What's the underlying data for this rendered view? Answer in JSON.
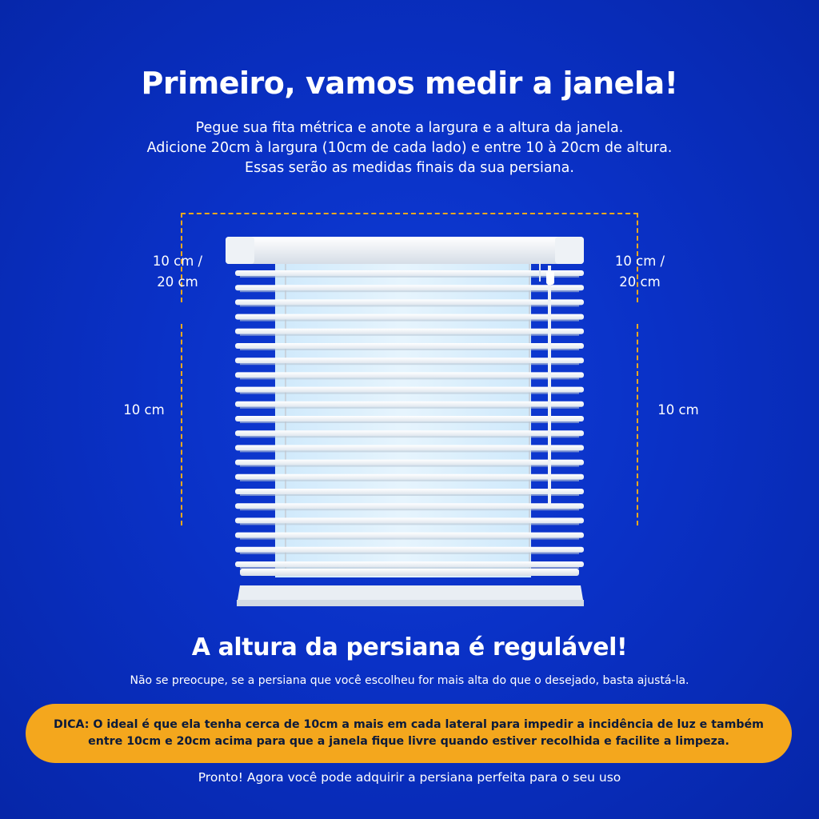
{
  "title": "Primeiro, vamos medir a janela!",
  "intro_lines": [
    "Pegue sua fita métrica e anote a largura e a altura da janela.",
    "Adicione 20cm à largura (10cm de cada lado) e entre 10 à 20cm de altura.",
    "Essas serão as medidas finais da sua persiana."
  ],
  "measurements": {
    "top_left_line1": "10 cm /",
    "top_left_line2": "20 cm",
    "top_right_line1": "10 cm /",
    "top_right_line2": "20 cm",
    "side_left": "10 cm",
    "side_right": "10 cm"
  },
  "subtitle": "A altura da persiana é regulável!",
  "subtext": "Não se preocupe, se a persiana que você escolheu for mais alta do que o desejado, basta ajustá-la.",
  "tip_lines": [
    "DICA: O ideal é que ela tenha cerca de 10cm a mais em cada lateral para impedir a incidência de luz e também",
    "entre 10cm e 20cm acima para que a janela fique livre quando estiver recolhida e facilite a limpeza."
  ],
  "footer": "Pronto! Agora você pode adquirir a persiana perfeita para o seu uso",
  "colors": {
    "background": "#0a31c6",
    "accent": "#f4a71d",
    "text": "#ffffff"
  }
}
